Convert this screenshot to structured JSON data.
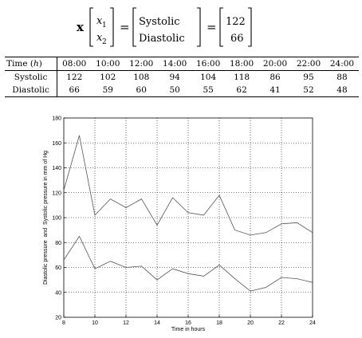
{
  "equation": {
    "lhs": "x",
    "v1": [
      "x",
      "x"
    ],
    "v1_subs": [
      "1",
      "2"
    ],
    "v2": [
      "Systolic",
      "Diastolic"
    ],
    "v3": [
      "122",
      "66"
    ],
    "eq": "="
  },
  "table": {
    "header_label": "Time",
    "header_unit": "h",
    "times": [
      "08:00",
      "10:00",
      "12:00",
      "14:00",
      "16:00",
      "18:00",
      "20:00",
      "22:00",
      "24:00"
    ],
    "rows": [
      {
        "label": "Systolic",
        "values": [
          "122",
          "102",
          "108",
          "94",
          "104",
          "118",
          "86",
          "95",
          "88"
        ]
      },
      {
        "label": "Diastolic",
        "values": [
          "66",
          "59",
          "60",
          "50",
          "55",
          "62",
          "41",
          "52",
          "48"
        ]
      }
    ]
  },
  "chart_data": {
    "type": "line",
    "xlabel": "Time in hours",
    "ylabel": "Diastolic pressure  and  Systolic pressure in mm of Hg",
    "xlim": [
      8,
      24
    ],
    "ylim": [
      20,
      180
    ],
    "xticks": [
      8,
      10,
      12,
      14,
      16,
      18,
      20,
      22,
      24
    ],
    "yticks": [
      20,
      40,
      60,
      80,
      100,
      120,
      140,
      160,
      180
    ],
    "grid": true,
    "line_color": "#555555",
    "series": [
      {
        "x": [
          8,
          9,
          10,
          11,
          12,
          13,
          14,
          15,
          16,
          17,
          18,
          19,
          20,
          21,
          22,
          23,
          24
        ],
        "values": [
          122,
          166,
          102,
          115,
          108,
          115,
          94,
          116,
          104,
          102,
          118,
          90,
          86,
          88,
          95,
          96,
          88
        ]
      },
      {
        "x": [
          8,
          9,
          10,
          11,
          12,
          13,
          14,
          15,
          16,
          17,
          18,
          19,
          20,
          21,
          22,
          23,
          24
        ],
        "values": [
          66,
          85,
          59,
          65,
          60,
          61,
          50,
          59,
          55,
          53,
          62,
          51,
          41,
          44,
          52,
          51,
          48
        ]
      }
    ]
  }
}
